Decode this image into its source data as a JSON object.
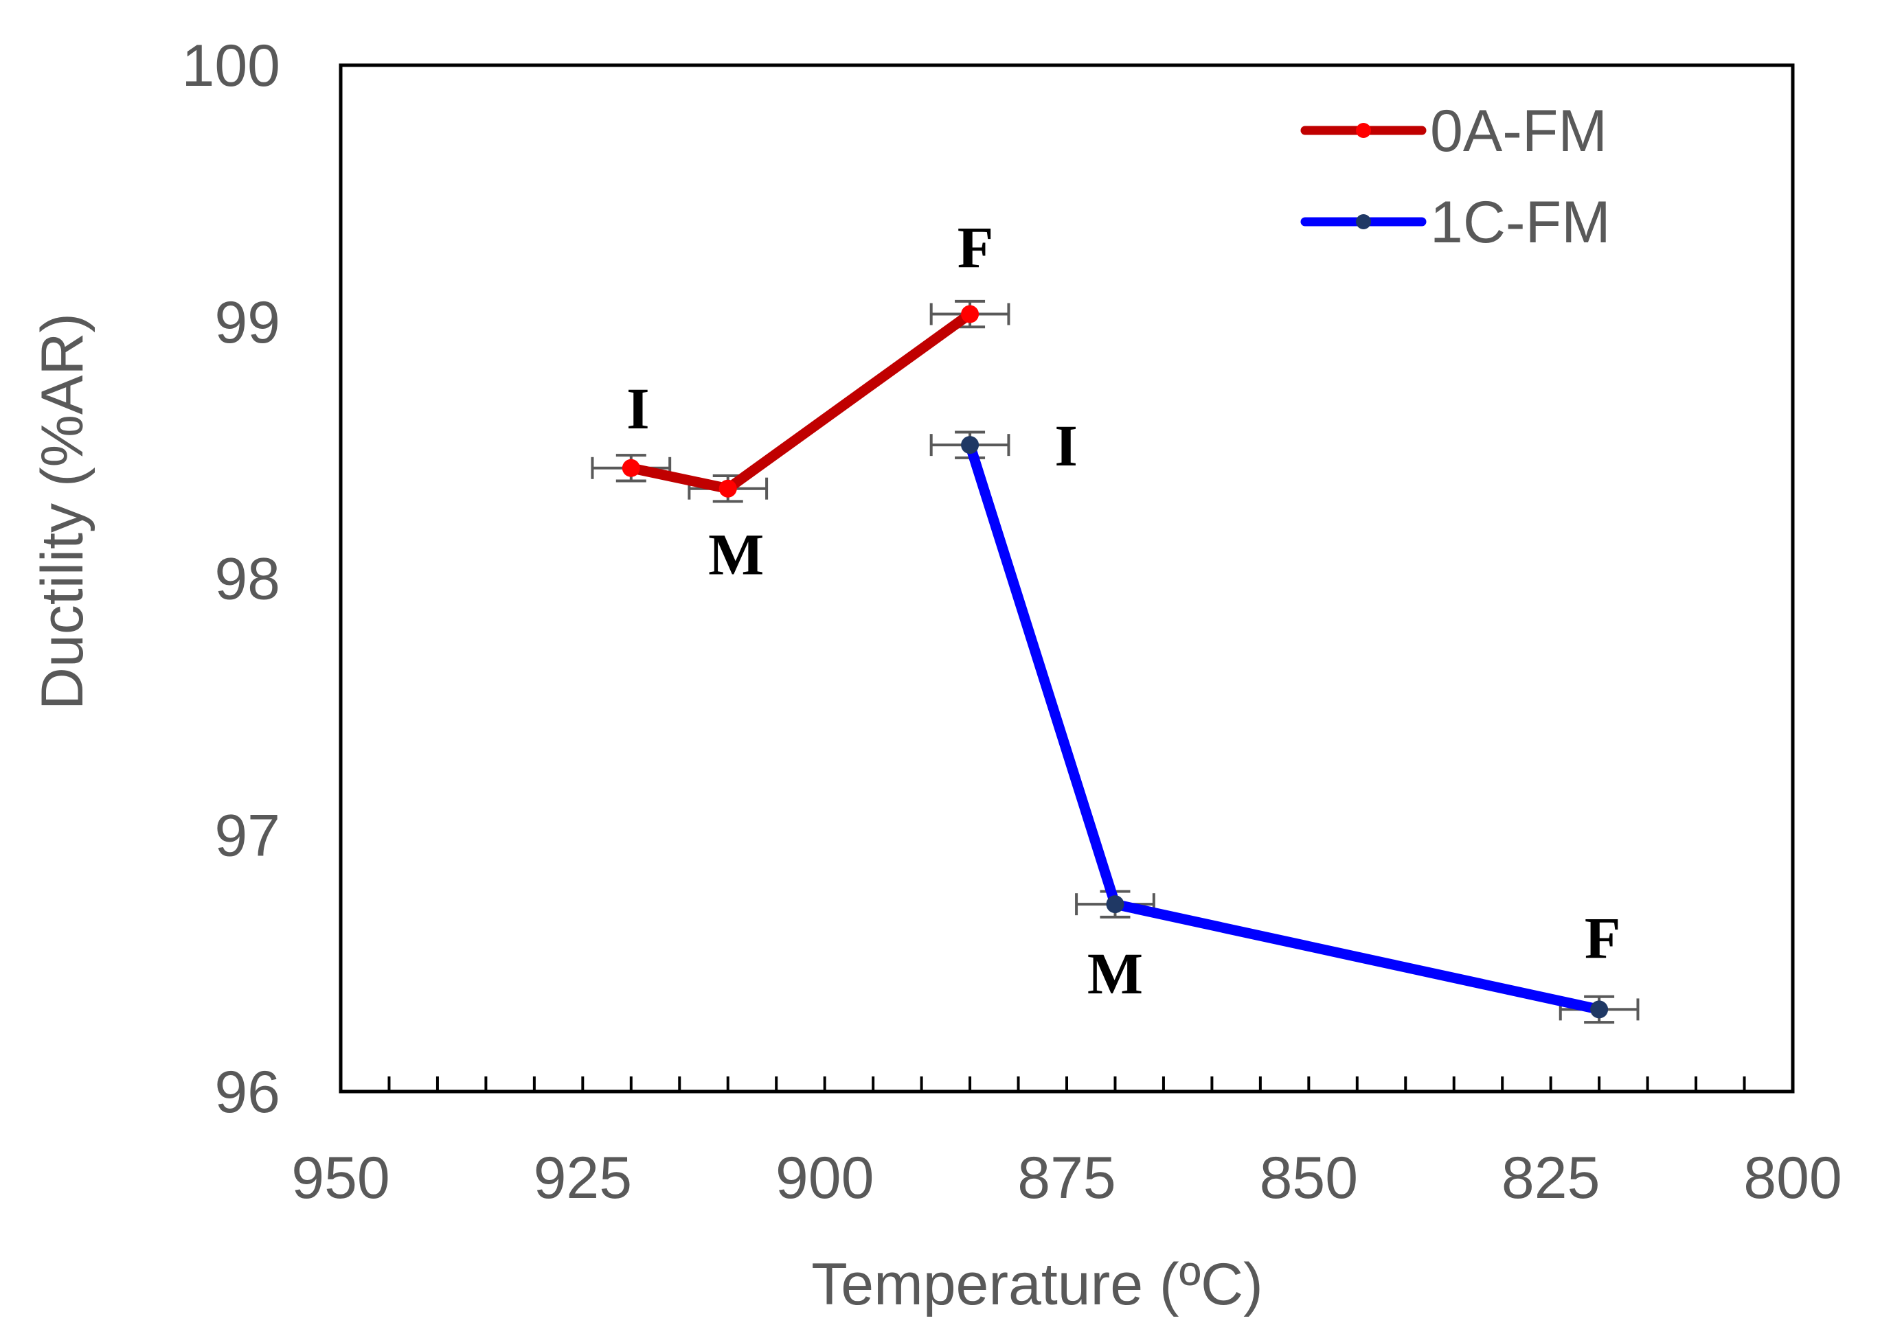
{
  "chart_data": {
    "type": "line",
    "title": "",
    "xlabel": "Temperature (ºC)",
    "ylabel": "Ductility (%AR)",
    "xlim": [
      950,
      800
    ],
    "ylim": [
      96,
      100
    ],
    "x_reversed": true,
    "x_ticks": [
      "950",
      "925",
      "900",
      "875",
      "850",
      "825",
      "800"
    ],
    "y_ticks": [
      "96",
      "97",
      "98",
      "99",
      "100"
    ],
    "grid": false,
    "legend_position": "top-right",
    "series": [
      {
        "name": "0A-FM",
        "color": "#C00000",
        "marker_color": "#FF0000",
        "points": [
          {
            "x": 920,
            "y": 98.43,
            "xerr": 4,
            "yerr": 0.05,
            "label": "I"
          },
          {
            "x": 910,
            "y": 98.35,
            "xerr": 4,
            "yerr": 0.05,
            "label": "M"
          },
          {
            "x": 885,
            "y": 99.03,
            "xerr": 4,
            "yerr": 0.05,
            "label": "F"
          }
        ]
      },
      {
        "name": "1C-FM",
        "color": "#0000FF",
        "marker_color": "#1F3864",
        "points": [
          {
            "x": 885,
            "y": 98.52,
            "xerr": 4,
            "yerr": 0.05,
            "label": "I"
          },
          {
            "x": 870,
            "y": 96.73,
            "xerr": 4,
            "yerr": 0.05,
            "label": "M"
          },
          {
            "x": 820,
            "y": 96.32,
            "xerr": 4,
            "yerr": 0.05,
            "label": "F"
          }
        ]
      }
    ]
  }
}
